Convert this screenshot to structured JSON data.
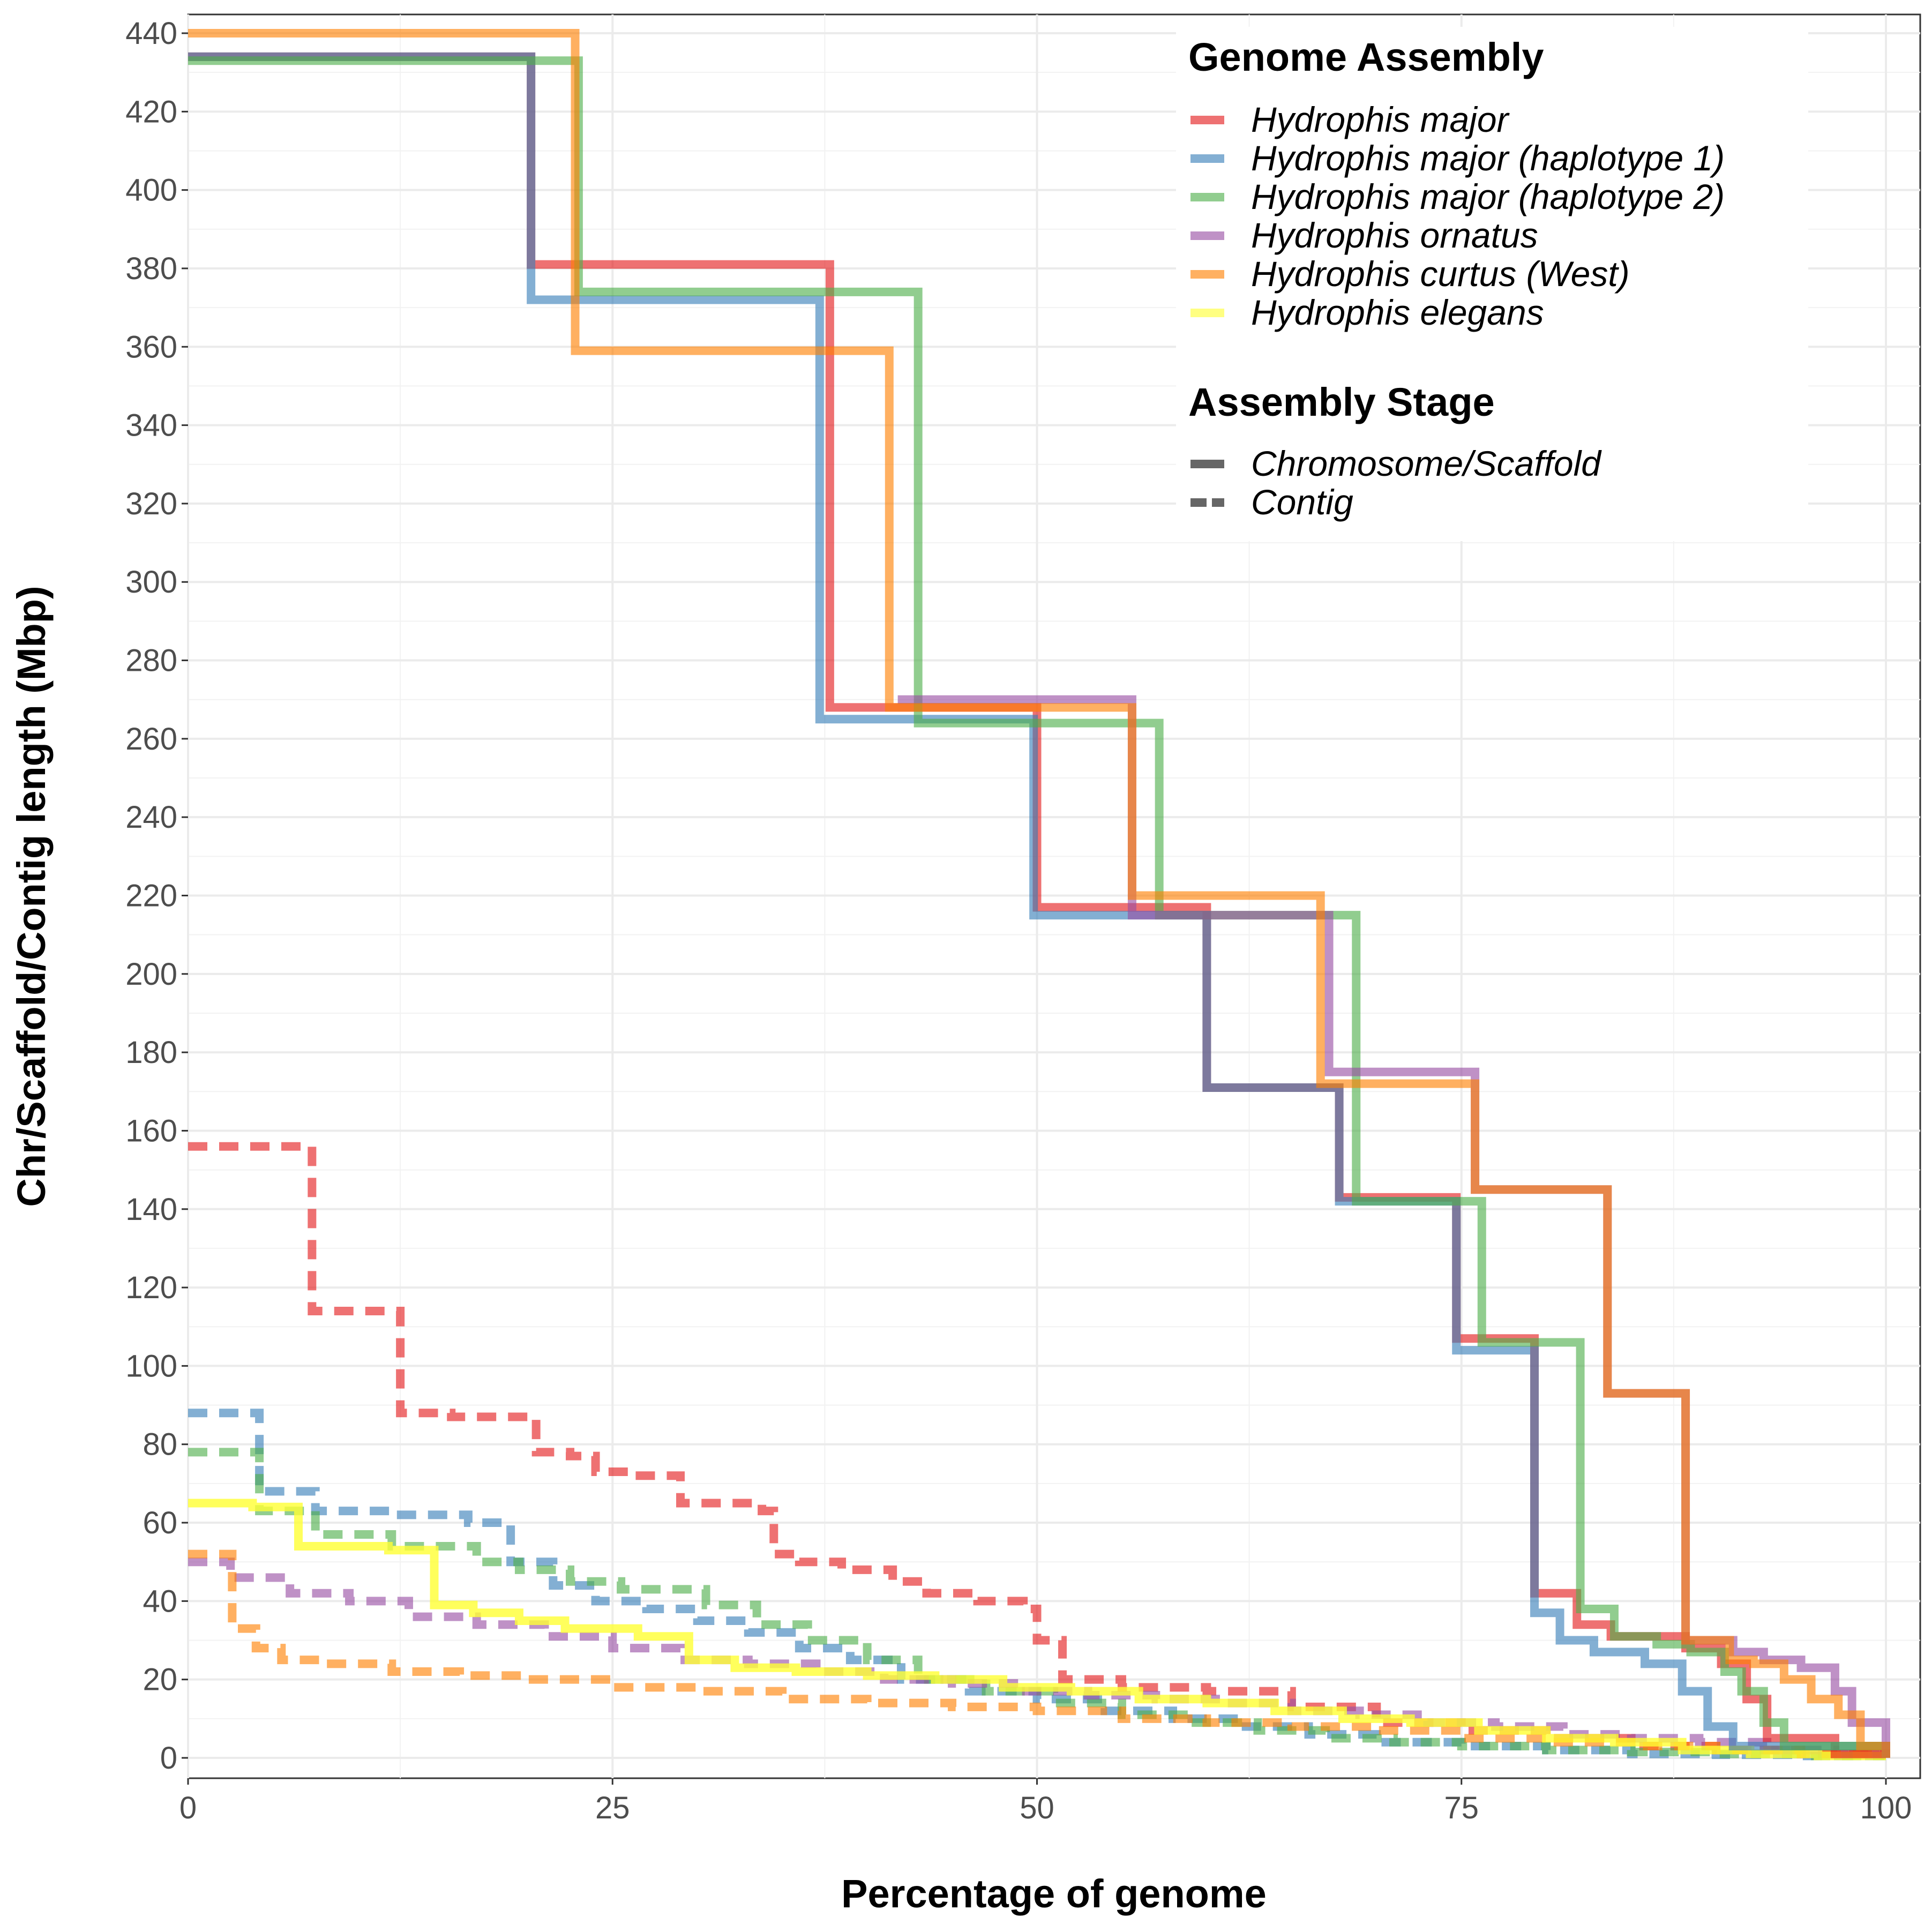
{
  "chart_data": {
    "type": "line",
    "xlabel": "Percentage of genome",
    "ylabel": "Chr/Scaffold/Contig length (Mbp)",
    "xlim": [
      0,
      100
    ],
    "ylim": [
      0,
      440
    ],
    "x_ticks": [
      0,
      25,
      50,
      75,
      100
    ],
    "y_ticks": [
      0,
      20,
      40,
      60,
      80,
      100,
      120,
      140,
      160,
      180,
      200,
      220,
      240,
      260,
      280,
      300,
      320,
      340,
      360,
      380,
      400,
      420,
      440
    ],
    "grid": true,
    "legend_position": "top-right",
    "legend": {
      "assembly_title": "Genome Assembly",
      "stage_title": "Assembly Stage",
      "stages": [
        {
          "label": "Chromosome/Scaffold",
          "dash": "solid"
        },
        {
          "label": "Contig",
          "dash": "dashed"
        }
      ]
    },
    "series": [
      {
        "name": "Hydrophis major",
        "color": "#E41A1C",
        "stage": "Chromosome/Scaffold",
        "x": [
          0,
          20.2,
          37.8,
          50.0,
          60.0,
          67.8,
          74.7,
          79.3,
          81.8,
          83.8,
          88.2,
          90.3,
          91.8,
          93.0,
          97.0,
          100
        ],
        "y": [
          434,
          381,
          268,
          217,
          171,
          143,
          107,
          42,
          34,
          31,
          28,
          24,
          15,
          5,
          1,
          0
        ]
      },
      {
        "name": "Hydrophis major (haplotype 1)",
        "color": "#377EB8",
        "stage": "Chromosome/Scaffold",
        "x": [
          0,
          20.2,
          37.2,
          49.8,
          60.0,
          67.8,
          74.7,
          79.3,
          80.8,
          82.8,
          85.8,
          88.0,
          89.5,
          91.0,
          100
        ],
        "y": [
          434,
          372,
          265,
          215,
          171,
          142,
          104,
          37,
          30,
          27,
          24,
          17,
          8,
          3,
          0
        ],
        "draw_start": 20.2
      },
      {
        "name": "Hydrophis major (haplotype 2)",
        "color": "#4DAF4A",
        "stage": "Chromosome/Scaffold",
        "x": [
          0,
          23.0,
          43.0,
          57.2,
          68.8,
          76.2,
          82.0,
          84.0,
          86.5,
          88.5,
          90.5,
          91.5,
          92.8,
          94.0,
          100
        ],
        "y": [
          433,
          374,
          264,
          215,
          142,
          106,
          38,
          31,
          29,
          27,
          22,
          17,
          9,
          3,
          0
        ]
      },
      {
        "name": "Hydrophis ornatus",
        "color": "#984EA3",
        "stage": "Chromosome/Scaffold",
        "x": [
          41.8,
          55.6,
          67.2,
          75.8,
          83.6,
          88.2,
          91.0,
          92.8,
          95.0,
          97.0,
          98.0,
          100
        ],
        "y": [
          270,
          215,
          175,
          145,
          93,
          30,
          27,
          25,
          23,
          17,
          9,
          0
        ],
        "draw_start": 41.8
      },
      {
        "name": "Hydrophis curtus (West)",
        "color": "#FF7F00",
        "stage": "Chromosome/Scaffold",
        "x": [
          0,
          22.8,
          41.3,
          55.6,
          66.7,
          75.8,
          83.6,
          88.2,
          90.8,
          92.2,
          94.0,
          95.6,
          97.2,
          98.5,
          100
        ],
        "y": [
          440,
          359,
          268,
          220,
          172,
          145,
          93,
          30,
          25,
          24,
          20,
          15,
          11,
          3,
          0
        ]
      },
      {
        "name": "Hydrophis elegans",
        "color": "#FFFF33",
        "stage": "Contig",
        "x": [
          0,
          3.8,
          6.5,
          11.8,
          14.5,
          16.8,
          19.5,
          22.2,
          26.5,
          29.5,
          32.2,
          35.8,
          40.0,
          44.0,
          48.0,
          52.0,
          56.0,
          60.0,
          64.0,
          68.0,
          72.0,
          76.0,
          80.0,
          84.0,
          88.0,
          92.0,
          96.0,
          100
        ],
        "y": [
          65,
          64,
          54,
          53,
          39,
          37,
          35,
          33,
          31,
          25,
          23,
          22,
          21,
          20,
          18,
          17,
          15,
          14,
          12,
          10,
          9,
          7,
          5,
          4,
          2,
          1,
          0.5,
          0
        ],
        "solid_line": true
      },
      {
        "name": "Hydrophis major contig",
        "color": "#E41A1C",
        "stage": "Contig",
        "x": [
          0,
          7.3,
          12.5,
          15.5,
          20.5,
          22.5,
          24.0,
          26.0,
          29.0,
          33.8,
          34.5,
          36.0,
          38.5,
          41.5,
          43.5,
          46.5,
          49.2,
          50.0,
          51.5,
          55.0,
          60.0,
          65.0,
          70.0,
          75.0,
          80.0,
          85.0,
          90.0,
          95.0,
          100
        ],
        "y": [
          156,
          114,
          88,
          87,
          78,
          77,
          73,
          72,
          65,
          63,
          52,
          50,
          48,
          45,
          42,
          40,
          38,
          30,
          20,
          18,
          17,
          13,
          9,
          7,
          5,
          3,
          2,
          1,
          0
        ]
      },
      {
        "name": "Hydrophis major (haplotype 1) contig",
        "color": "#377EB8",
        "stage": "Contig",
        "x": [
          0,
          4.2,
          7.5,
          12.0,
          16.5,
          19.0,
          21.5,
          24.0,
          27.0,
          30.0,
          33.0,
          36.0,
          39.0,
          42.0,
          46.0,
          50.0,
          54.0,
          58.0,
          62.0,
          66.0,
          70.0,
          75.0,
          80.0,
          85.0,
          90.0,
          95.0,
          100
        ],
        "y": [
          88,
          68,
          63,
          62,
          60,
          50,
          44,
          40,
          38,
          35,
          32,
          28,
          25,
          20,
          17,
          15,
          12,
          10,
          8,
          6,
          4,
          3,
          2,
          1,
          0.8,
          0.5,
          0
        ]
      },
      {
        "name": "Hydrophis major (haplotype 2) contig",
        "color": "#4DAF4A",
        "stage": "Contig",
        "x": [
          0,
          4.2,
          7.5,
          12.0,
          17.0,
          19.5,
          22.5,
          25.5,
          30.5,
          33.5,
          36.5,
          40.0,
          43.0,
          47.0,
          51.0,
          55.0,
          59.0,
          63.0,
          67.0,
          71.0,
          75.0,
          80.0,
          85.0,
          90.0,
          95.0,
          100
        ],
        "y": [
          78,
          63,
          57,
          54,
          50,
          48,
          45,
          43,
          39,
          34,
          30,
          25,
          20,
          17,
          14,
          11,
          9,
          7,
          5,
          4,
          3,
          2,
          1.5,
          1,
          0.5,
          0
        ]
      },
      {
        "name": "Hydrophis ornatus contig",
        "color": "#984EA3",
        "stage": "Contig",
        "x": [
          0,
          2.5,
          6.0,
          9.5,
          13.0,
          17.0,
          21.0,
          25.0,
          29.0,
          33.0,
          37.0,
          41.0,
          45.0,
          49.0,
          53.0,
          57.0,
          61.0,
          65.0,
          69.0,
          73.0,
          77.0,
          81.0,
          85.0,
          89.0,
          93.0,
          97.0,
          100
        ],
        "y": [
          50,
          46,
          42,
          40,
          36,
          34,
          31,
          28,
          25,
          24,
          22,
          20,
          19,
          17,
          16,
          15,
          14,
          12,
          11,
          9,
          8,
          6,
          5,
          4,
          2,
          1,
          0
        ]
      },
      {
        "name": "Hydrophis curtus (West) contig",
        "color": "#FF7F00",
        "stage": "Contig",
        "x": [
          0,
          2.6,
          4.0,
          5.5,
          8.0,
          12.0,
          16.0,
          20.0,
          25.0,
          30.0,
          35.0,
          40.0,
          45.0,
          50.0,
          55.0,
          60.0,
          65.0,
          70.0,
          75.0,
          80.0,
          85.0,
          90.0,
          95.0,
          100
        ],
        "y": [
          52,
          33,
          28,
          25,
          24,
          22,
          21,
          20,
          18,
          17,
          15,
          14,
          13,
          12,
          10,
          9,
          8,
          7,
          5,
          4,
          3,
          2,
          1,
          0
        ]
      }
    ]
  }
}
